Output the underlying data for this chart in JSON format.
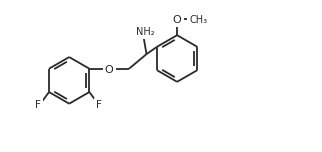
{
  "background": "#ffffff",
  "bond_color": "#2a2a2a",
  "atom_color": "#2a2a2a",
  "bond_lw": 1.3,
  "font_size": 7.0,
  "fig_w": 3.22,
  "fig_h": 1.52,
  "dpi": 100,
  "xlim": [
    -0.5,
    10.5
  ],
  "ylim": [
    0.0,
    4.4
  ],
  "ring_r": 0.8,
  "dbl_inner_off": 0.1,
  "dbl_shorten": 0.15
}
